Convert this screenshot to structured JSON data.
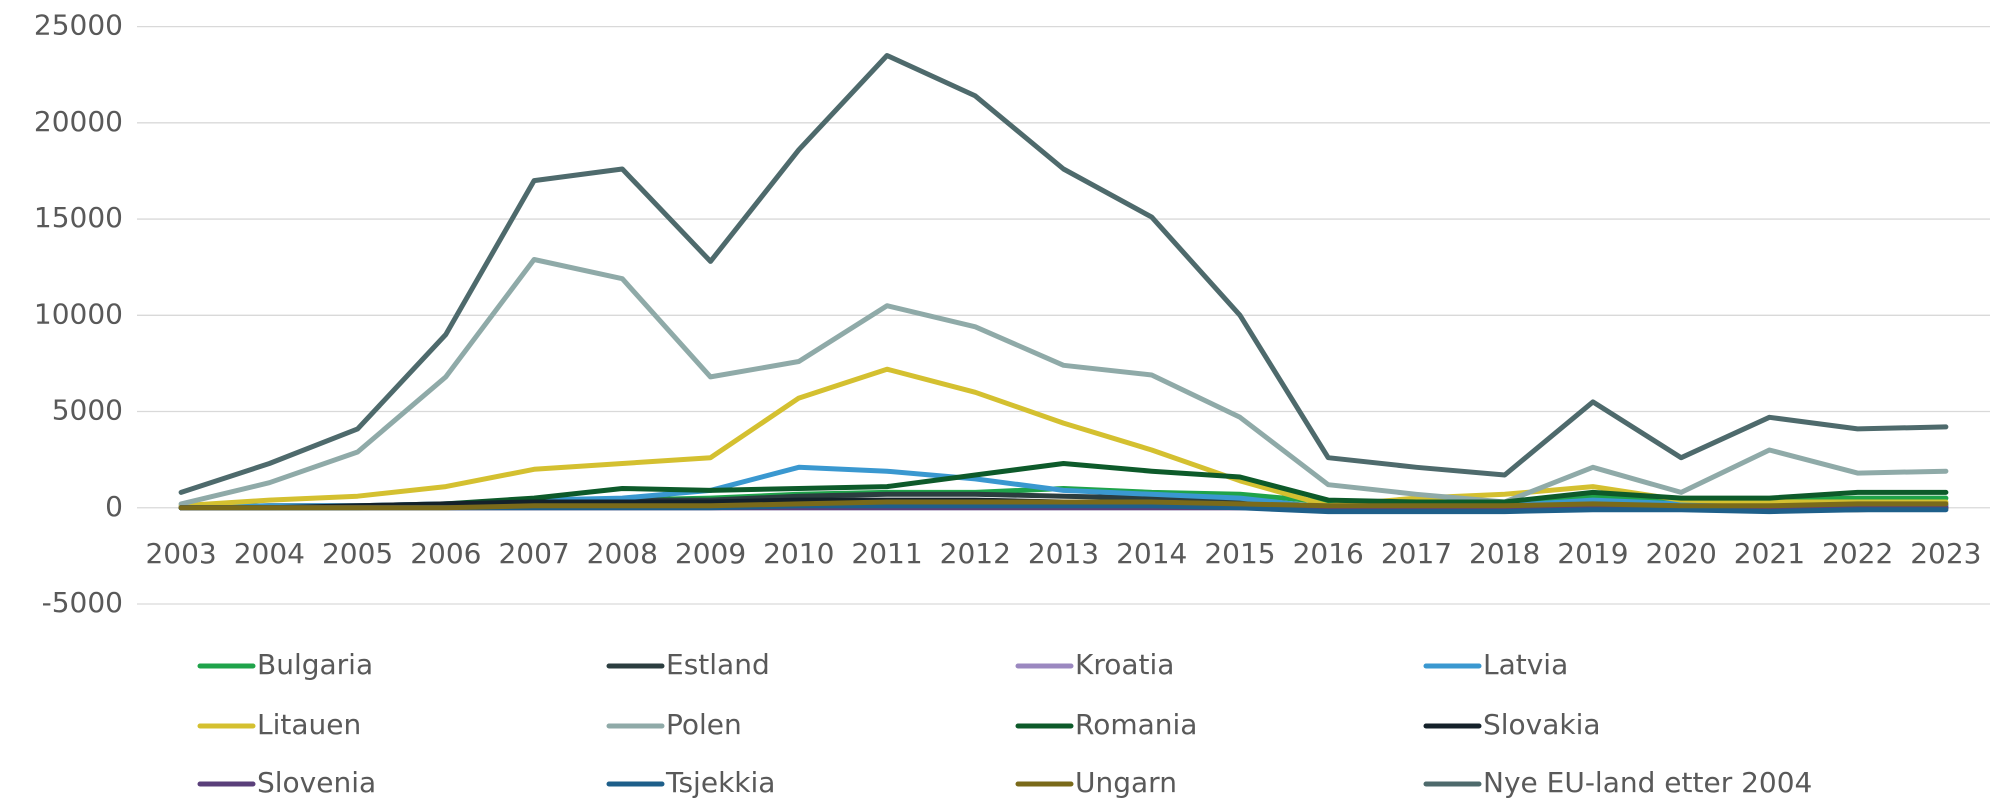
{
  "chart_data": {
    "type": "line",
    "categories": [
      "2003",
      "2004",
      "2005",
      "2006",
      "2007",
      "2008",
      "2009",
      "2010",
      "2011",
      "2012",
      "2013",
      "2014",
      "2015",
      "2016",
      "2017",
      "2018",
      "2019",
      "2020",
      "2021",
      "2022",
      "2023"
    ],
    "ylim": [
      -5000,
      25000
    ],
    "yticks": [
      -5000,
      0,
      5000,
      10000,
      15000,
      20000,
      25000
    ],
    "grid": true,
    "series": [
      {
        "name": "Bulgaria",
        "color": "#1fa34a",
        "values": [
          0,
          0,
          0,
          100,
          300,
          400,
          500,
          700,
          800,
          800,
          1000,
          800,
          700,
          300,
          200,
          200,
          600,
          400,
          400,
          500,
          500
        ]
      },
      {
        "name": "Estland",
        "color": "#2b3d3f",
        "values": [
          0,
          100,
          100,
          200,
          300,
          400,
          400,
          600,
          700,
          700,
          600,
          500,
          400,
          0,
          0,
          0,
          200,
          100,
          100,
          100,
          100
        ]
      },
      {
        "name": "Kroatia",
        "color": "#9b88c0",
        "values": [
          0,
          0,
          0,
          0,
          0,
          0,
          0,
          0,
          0,
          0,
          0,
          0,
          0,
          0,
          0,
          0,
          100,
          100,
          100,
          100,
          100
        ]
      },
      {
        "name": "Latvia",
        "color": "#3a98d0",
        "values": [
          0,
          100,
          100,
          200,
          400,
          500,
          900,
          2100,
          1900,
          1500,
          900,
          700,
          500,
          0,
          0,
          100,
          400,
          200,
          100,
          100,
          100
        ]
      },
      {
        "name": "Litauen",
        "color": "#d4c030",
        "values": [
          100,
          400,
          600,
          1100,
          2000,
          2300,
          2600,
          5700,
          7200,
          6000,
          4400,
          3000,
          1400,
          100,
          500,
          700,
          1100,
          400,
          300,
          300,
          300
        ]
      },
      {
        "name": "Polen",
        "color": "#8faaa8",
        "values": [
          200,
          1300,
          2900,
          6800,
          12900,
          11900,
          6800,
          7600,
          10500,
          9400,
          7400,
          6900,
          4700,
          1200,
          700,
          300,
          2100,
          800,
          3000,
          1800,
          1900
        ]
      },
      {
        "name": "Romania",
        "color": "#0d5a2a",
        "values": [
          0,
          0,
          0,
          200,
          500,
          1000,
          900,
          1000,
          1100,
          1700,
          2300,
          1900,
          1600,
          400,
          300,
          300,
          800,
          500,
          500,
          800,
          800
        ]
      },
      {
        "name": "Slovakia",
        "color": "#14212a",
        "values": [
          0,
          0,
          100,
          200,
          300,
          300,
          300,
          400,
          400,
          400,
          300,
          300,
          200,
          -100,
          -100,
          -100,
          100,
          0,
          -100,
          -100,
          0
        ]
      },
      {
        "name": "Slovenia",
        "color": "#5a3f7a",
        "values": [
          0,
          0,
          0,
          0,
          0,
          0,
          0,
          0,
          0,
          0,
          0,
          0,
          0,
          0,
          0,
          0,
          0,
          0,
          0,
          0,
          0
        ]
      },
      {
        "name": "Tsjekkia",
        "color": "#1e5f8a",
        "values": [
          0,
          0,
          0,
          0,
          0,
          0,
          0,
          100,
          100,
          100,
          100,
          100,
          0,
          -200,
          -200,
          -200,
          -100,
          -100,
          -200,
          -100,
          -100
        ]
      },
      {
        "name": "Ungarn",
        "color": "#7a6a1a",
        "values": [
          0,
          0,
          0,
          0,
          100,
          100,
          100,
          200,
          300,
          300,
          300,
          300,
          200,
          100,
          100,
          100,
          200,
          100,
          100,
          200,
          200
        ]
      },
      {
        "name": "Nye EU-land etter 2004",
        "color": "#4e6a6c",
        "values": [
          800,
          2300,
          4100,
          9000,
          17000,
          17600,
          12800,
          18600,
          23500,
          21400,
          17600,
          15100,
          10000,
          2600,
          2100,
          1700,
          5500,
          2600,
          4700,
          4100,
          4200
        ]
      }
    ]
  }
}
